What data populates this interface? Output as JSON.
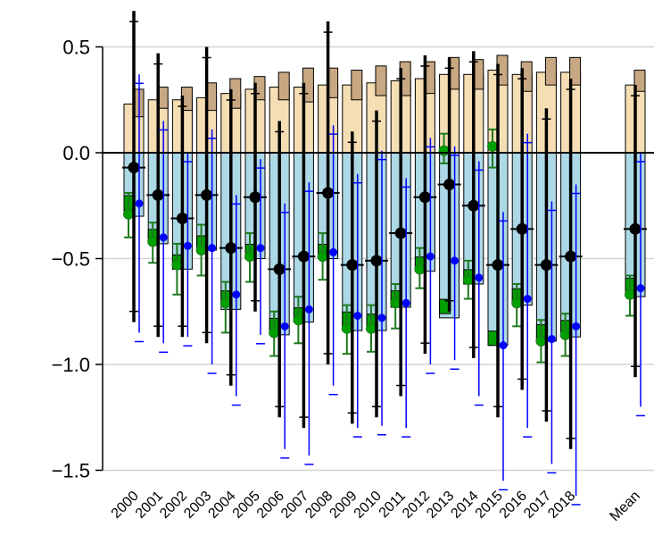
{
  "chart_data": {
    "type": "bar",
    "title": "",
    "xlabel": "",
    "ylabel": "",
    "ylim": [
      -1.5,
      0.5
    ],
    "yticks": [
      -1.5,
      -1.0,
      -0.5,
      0.0,
      0.5
    ],
    "ytick_labels": [
      "−1.5",
      "−1.0",
      "−0.5",
      "0.0",
      "0.5"
    ],
    "grid": "horizontal",
    "legend": "none",
    "categories": [
      "2000",
      "2001",
      "2002",
      "2003",
      "2004",
      "2005",
      "2006",
      "2007",
      "2008",
      "2009",
      "2010",
      "2011",
      "2012",
      "2013",
      "2014",
      "2015",
      "2016",
      "2017",
      "2018",
      "Mean"
    ],
    "colors": {
      "light_orange": "#F5DEB3",
      "tan": "#C8A882",
      "light_blue": "#ADD8E6",
      "green": "#00A000",
      "dark_green": "#1E7A1E",
      "blue": "#0000FF",
      "black": "#000000",
      "grid": "#D3D3D3"
    },
    "series": [
      {
        "key": "positive_bar_total",
        "values": [
          0.23,
          0.25,
          0.25,
          0.26,
          0.28,
          0.3,
          0.31,
          0.31,
          0.32,
          0.32,
          0.33,
          0.34,
          0.35,
          0.37,
          0.37,
          0.39,
          0.37,
          0.38,
          0.38,
          0.32
        ]
      },
      {
        "key": "positive_bar_inner",
        "values": [
          0.3,
          0.31,
          0.31,
          0.33,
          0.35,
          0.36,
          0.38,
          0.4,
          0.4,
          0.39,
          0.41,
          0.43,
          0.43,
          0.45,
          0.44,
          0.46,
          0.43,
          0.45,
          0.45,
          0.39
        ]
      },
      {
        "key": "positive_bar_inner_low",
        "values": [
          0.17,
          0.21,
          0.2,
          0.2,
          0.21,
          0.25,
          0.25,
          0.24,
          0.26,
          0.25,
          0.27,
          0.27,
          0.28,
          0.3,
          0.3,
          0.32,
          0.29,
          0.32,
          0.32,
          0.29
        ]
      },
      {
        "key": "negative_bar_total",
        "values": [
          -0.3,
          -0.43,
          -0.55,
          -0.46,
          -0.74,
          -0.5,
          -0.86,
          -0.8,
          -0.5,
          -0.84,
          -0.84,
          -0.73,
          -0.56,
          -0.78,
          -0.62,
          -0.91,
          -0.72,
          -0.89,
          -0.87,
          -0.68
        ]
      },
      {
        "key": "negative_bar_green",
        "values": [
          -0.27,
          -0.43,
          -0.55,
          -0.46,
          -0.72,
          -0.5,
          -0.85,
          -0.8,
          -0.5,
          -0.82,
          -0.83,
          -0.72,
          -0.56,
          -0.76,
          -0.62,
          -0.91,
          -0.71,
          -0.88,
          -0.86,
          -0.66
        ]
      },
      {
        "key": "green_point",
        "values": [
          -0.29,
          -0.42,
          -0.53,
          -0.46,
          -0.71,
          -0.49,
          -0.85,
          -0.79,
          -0.49,
          -0.83,
          -0.83,
          -0.71,
          -0.55,
          0.01,
          -0.6,
          0.03,
          -0.71,
          -0.89,
          -0.86,
          -0.67
        ]
      },
      {
        "key": "green_errorbar_low",
        "values": [
          -0.4,
          -0.52,
          -0.67,
          -0.58,
          -0.85,
          -0.61,
          -0.96,
          -0.9,
          -0.6,
          -0.95,
          -0.94,
          -0.83,
          -0.64,
          -0.05,
          -0.69,
          -0.07,
          -0.82,
          -0.99,
          -0.96,
          -0.77
        ]
      },
      {
        "key": "green_errorbar_high",
        "values": [
          -0.19,
          -0.33,
          -0.43,
          -0.34,
          -0.61,
          -0.38,
          -0.75,
          -0.68,
          -0.38,
          -0.72,
          -0.72,
          -0.62,
          -0.45,
          0.09,
          -0.51,
          0.11,
          -0.62,
          -0.79,
          -0.76,
          -0.58
        ]
      },
      {
        "key": "black_point",
        "values": [
          -0.07,
          -0.2,
          -0.31,
          -0.2,
          -0.45,
          -0.21,
          -0.55,
          -0.49,
          -0.19,
          -0.53,
          -0.51,
          -0.38,
          -0.21,
          -0.15,
          -0.25,
          -0.53,
          -0.36,
          -0.53,
          -0.49,
          -0.36
        ]
      },
      {
        "key": "black_errorbar_low",
        "values": [
          -0.8,
          -0.87,
          -0.87,
          -0.9,
          -1.1,
          -0.75,
          -1.25,
          -1.3,
          -1.0,
          -1.28,
          -1.25,
          -1.15,
          -0.95,
          -0.75,
          -0.97,
          -1.25,
          -1.12,
          -1.27,
          -1.4,
          -1.06
        ]
      },
      {
        "key": "black_errorbar_high",
        "values": [
          0.67,
          0.47,
          0.27,
          0.5,
          0.3,
          0.33,
          0.15,
          0.33,
          0.62,
          0.1,
          0.2,
          0.4,
          0.46,
          0.45,
          0.48,
          0.42,
          0.4,
          0.21,
          0.35,
          0.32
        ]
      },
      {
        "key": "blue_point",
        "values": [
          -0.24,
          -0.4,
          -0.44,
          -0.45,
          -0.67,
          -0.45,
          -0.82,
          -0.74,
          -0.47,
          -0.77,
          -0.78,
          -0.71,
          -0.49,
          -0.51,
          -0.59,
          -0.91,
          -0.69,
          -0.88,
          -0.82,
          -0.64
        ]
      },
      {
        "key": "blue_errorbar_low",
        "values": [
          -0.85,
          -0.9,
          -0.87,
          -1.0,
          -1.15,
          -0.86,
          -1.4,
          -1.43,
          -1.1,
          -1.3,
          -1.29,
          -1.3,
          -1.0,
          -0.98,
          -1.15,
          -1.55,
          -1.3,
          -1.47,
          -1.62,
          -1.2
        ]
      },
      {
        "key": "blue_errorbar_high",
        "values": [
          0.37,
          0.15,
          0.0,
          0.11,
          -0.2,
          -0.03,
          -0.24,
          -0.14,
          0.13,
          -0.1,
          0.01,
          -0.12,
          0.07,
          0.03,
          -0.04,
          -0.28,
          0.09,
          -0.23,
          -0.15,
          0.0
        ]
      }
    ]
  }
}
